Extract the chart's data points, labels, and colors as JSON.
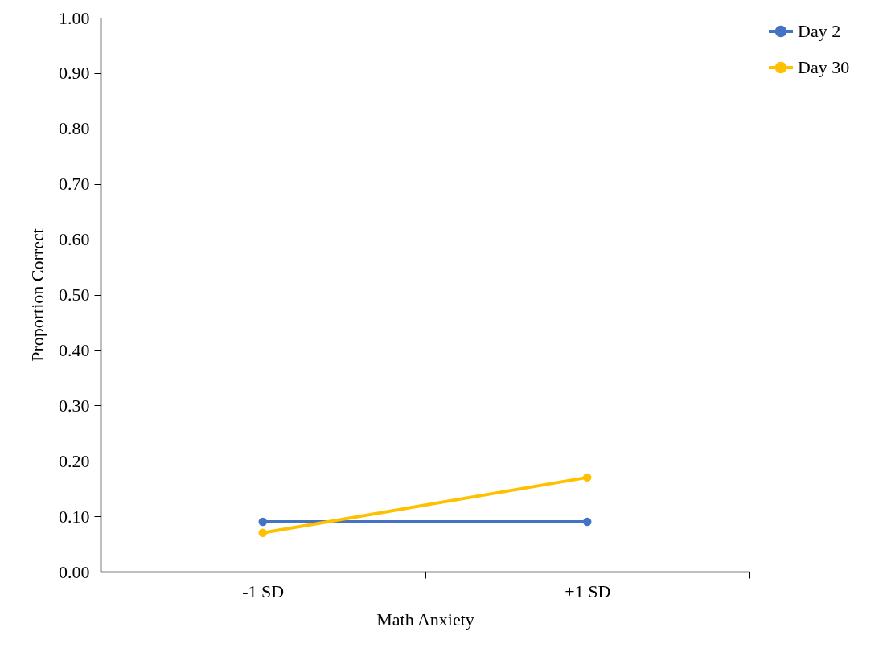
{
  "chart_data": {
    "type": "line",
    "xlabel": "Math Anxiety",
    "ylabel": "Proportion Correct",
    "categories": [
      "-1 SD",
      "+1 SD"
    ],
    "series": [
      {
        "name": "Day 2",
        "color": "#4472c4",
        "values": [
          0.09,
          0.09
        ]
      },
      {
        "name": "Day 30",
        "color": "#ffc000",
        "values": [
          0.07,
          0.17
        ]
      }
    ],
    "ylim": [
      0,
      1
    ],
    "yticks": [
      {
        "value": 0,
        "label": "0.00"
      },
      {
        "value": 0.1,
        "label": "0.10"
      },
      {
        "value": 0.2,
        "label": "0.20"
      },
      {
        "value": 0.3,
        "label": "0.30"
      },
      {
        "value": 0.4,
        "label": "0.40"
      },
      {
        "value": 0.5,
        "label": "0.50"
      },
      {
        "value": 0.6,
        "label": "0.60"
      },
      {
        "value": 0.7,
        "label": "0.70"
      },
      {
        "value": 0.8,
        "label": "0.80"
      },
      {
        "value": 0.9,
        "label": "0.90"
      },
      {
        "value": 1,
        "label": "1.00"
      }
    ],
    "grid": false,
    "legend": "right",
    "marker": "circle",
    "line_style": "solid"
  }
}
